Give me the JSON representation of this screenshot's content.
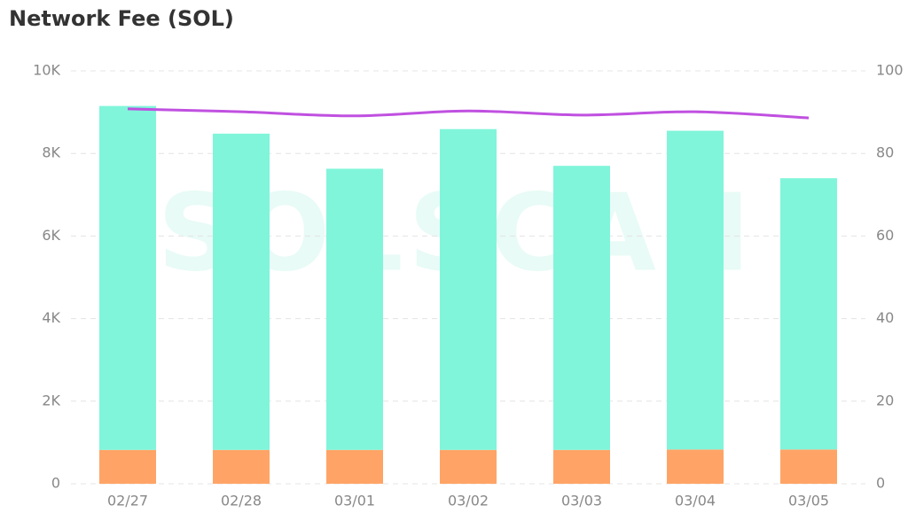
{
  "chart_data": {
    "type": "stacked_bar_line",
    "title": "Network Fee (SOL)",
    "watermark": "SOLSCAN",
    "categories": [
      "02/27",
      "02/28",
      "03/01",
      "03/02",
      "03/03",
      "03/04",
      "03/05"
    ],
    "series": [
      {
        "color": "#ffa466",
        "values": [
          820,
          820,
          820,
          820,
          820,
          830,
          830
        ]
      },
      {
        "color": "#80f5da",
        "values": [
          8330,
          7660,
          6810,
          7770,
          6880,
          7720,
          6570
        ]
      },
      {
        "color": "#c050e0",
        "axis": "y2",
        "values": [
          90.8,
          90.1,
          89.1,
          90.3,
          89.3,
          90.1,
          88.6
        ]
      }
    ],
    "ylim": [
      0,
      10000
    ],
    "yticks": [
      0,
      {
        "value": 2000,
        "label": "2K"
      },
      {
        "value": 4000,
        "label": "4K"
      },
      {
        "value": 6000,
        "label": "6K"
      },
      {
        "value": 8000,
        "label": "8K"
      },
      {
        "value": 10000,
        "label": "10K"
      }
    ],
    "y2lim": [
      0,
      100
    ],
    "y2ticks": [
      0,
      20,
      40,
      60,
      80,
      100
    ],
    "grid": true
  }
}
